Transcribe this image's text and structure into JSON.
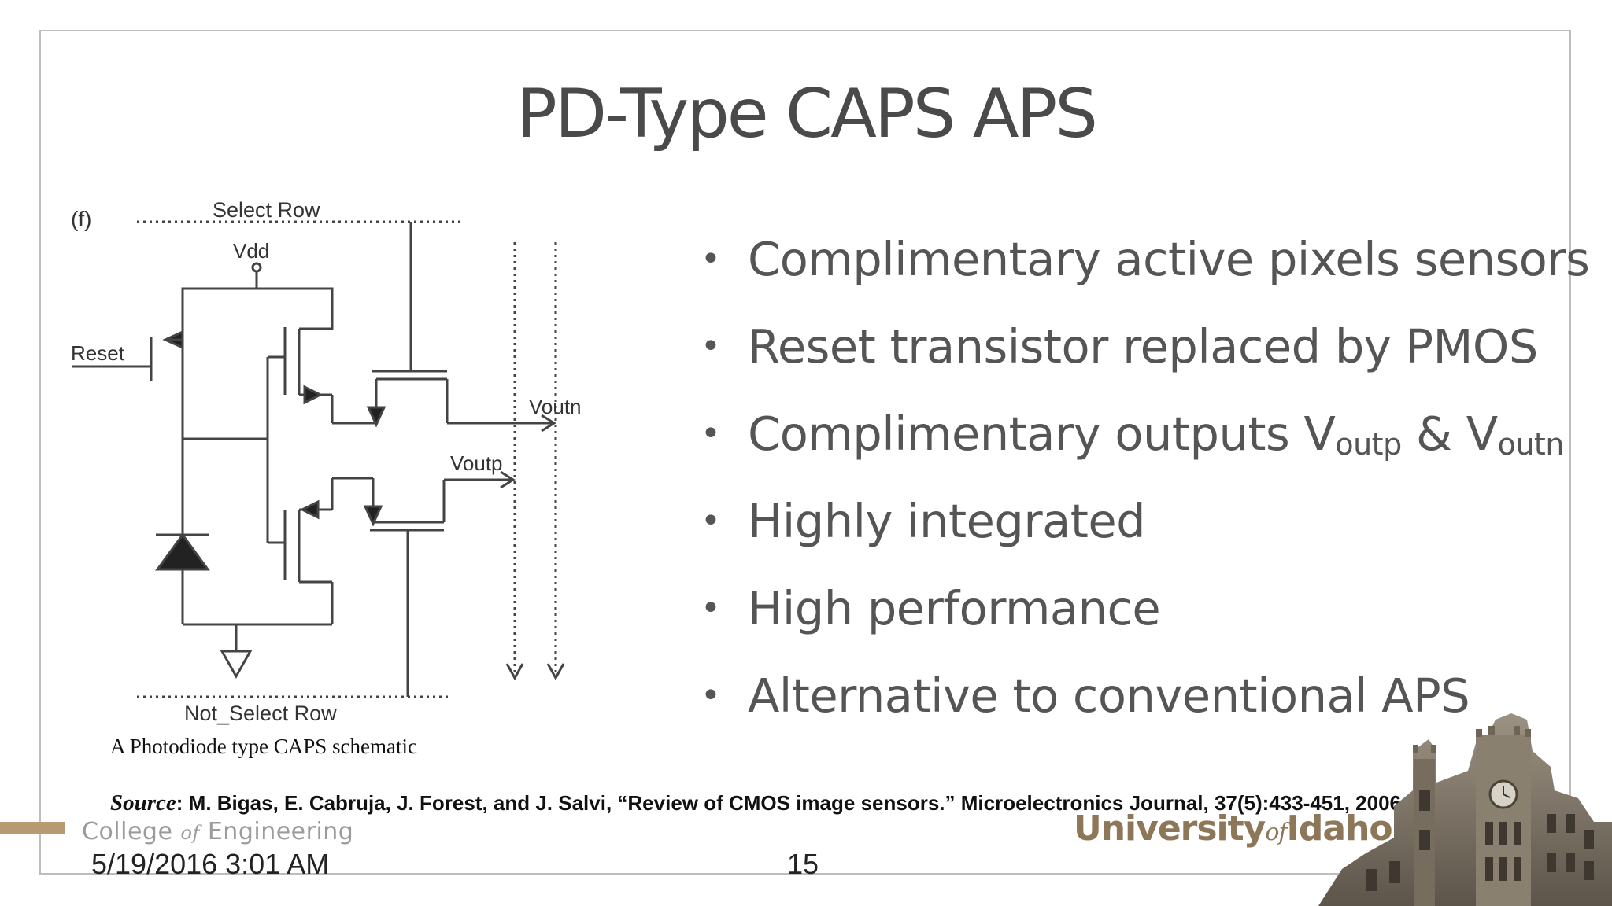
{
  "slide": {
    "title": "PD-Type CAPS APS",
    "bullets": [
      {
        "text": "Complimentary active pixels sensors"
      },
      {
        "text": "Reset transistor replaced by PMOS"
      },
      {
        "text": "Complimentary outputs V",
        "sub1": "outp",
        "mid": " & V",
        "sub2": "outn"
      },
      {
        "text": "Highly integrated"
      },
      {
        "text": "High performance"
      },
      {
        "text": "Alternative to conventional APS"
      }
    ],
    "bullet_glyph": "•"
  },
  "schematic": {
    "panel_label": "(f)",
    "select_row": "Select Row",
    "vdd": "Vdd",
    "reset": "Reset",
    "voutn": "Voutn",
    "voutp": "Voutp",
    "not_select_row": "Not_Select Row",
    "caption": "A Photodiode type CAPS schematic"
  },
  "source": {
    "label": "Source",
    "text": ": M. Bigas, E. Cabruja, J. Forest, and J. Salvi, “Review of CMOS image sensors.” Microelectronics Journal, 37(5):433-451, 2006"
  },
  "footer": {
    "college_a": "College ",
    "college_of": "of",
    "college_b": " Engineering",
    "date": "5/19/2016 3:01 AM",
    "page": "15",
    "uni_a": "University",
    "uni_of": "of",
    "uni_b": "Idaho",
    "accent_color": "#b59a72"
  }
}
